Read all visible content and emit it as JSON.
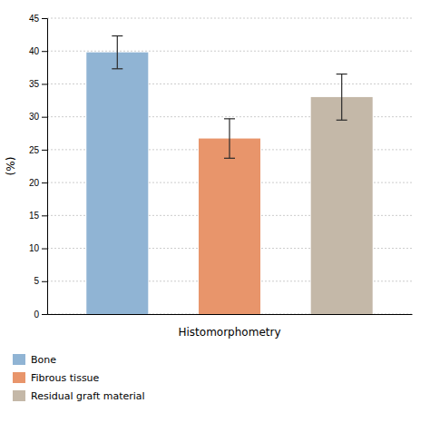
{
  "chart_data": {
    "type": "bar",
    "categories": [
      "Bone",
      "Fibrous tissue",
      "Residual graft material"
    ],
    "values": [
      39.8,
      26.7,
      33.0
    ],
    "errors": [
      2.5,
      3.0,
      3.5
    ],
    "colors": [
      "#90b4d4",
      "#e8956b",
      "#c4b8a8"
    ],
    "xlabel": "Histomorphometry",
    "ylabel": "(%)",
    "ylim": [
      0,
      45
    ],
    "yticks": [
      0,
      5,
      10,
      15,
      20,
      25,
      30,
      35,
      40,
      45
    ],
    "grid": true,
    "legend": "bottom",
    "tick_labels": "y"
  }
}
